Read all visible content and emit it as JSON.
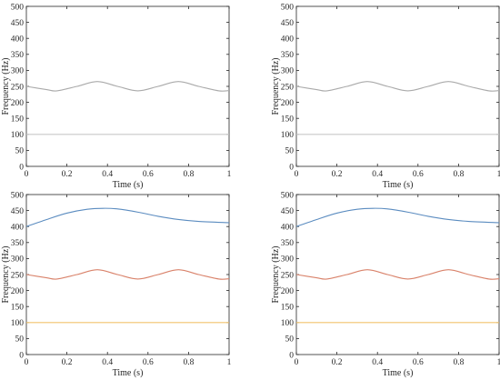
{
  "chart_data": [
    {
      "type": "line",
      "xlabel": "Time (s)",
      "ylabel": "Frequency (Hz)",
      "xlim": [
        0,
        1
      ],
      "ylim": [
        0,
        500
      ],
      "xticks": [
        "0",
        "0.2",
        "0.4",
        "0.6",
        "0.8",
        "1"
      ],
      "yticks": [
        "0",
        "50",
        "100",
        "150",
        "200",
        "250",
        "300",
        "350",
        "400",
        "450",
        "500"
      ],
      "grid": false,
      "series": [
        {
          "color": "#aaaaaa",
          "x": [
            0,
            0.1,
            0.15,
            0.25,
            0.35,
            0.45,
            0.55,
            0.65,
            0.75,
            0.85,
            0.95,
            1.0
          ],
          "y": [
            250,
            240,
            236,
            250,
            265,
            250,
            236,
            250,
            265,
            250,
            236,
            237
          ]
        },
        {
          "color": "#c8c8c8",
          "x": [
            0,
            1
          ],
          "y": [
            100,
            100
          ]
        }
      ]
    },
    {
      "type": "line",
      "xlabel": "Time (s)",
      "ylabel": "Frequency (Hz)",
      "xlim": [
        0,
        1
      ],
      "ylim": [
        0,
        500
      ],
      "xticks": [
        "0",
        "0.2",
        "0.4",
        "0.6",
        "0.8",
        "1"
      ],
      "yticks": [
        "0",
        "50",
        "100",
        "150",
        "200",
        "250",
        "300",
        "350",
        "400",
        "450",
        "500"
      ],
      "grid": false,
      "series": [
        {
          "color": "#aaaaaa",
          "x": [
            0,
            0.1,
            0.15,
            0.25,
            0.35,
            0.45,
            0.55,
            0.65,
            0.75,
            0.85,
            0.95,
            1.0
          ],
          "y": [
            250,
            240,
            236,
            250,
            265,
            250,
            236,
            250,
            265,
            250,
            236,
            237
          ]
        },
        {
          "color": "#c8c8c8",
          "x": [
            0,
            1
          ],
          "y": [
            100,
            100
          ]
        }
      ]
    },
    {
      "type": "line",
      "xlabel": "Time (s)",
      "ylabel": "Frequency (Hz)",
      "xlim": [
        0,
        1
      ],
      "ylim": [
        0,
        500
      ],
      "xticks": [
        "0",
        "0.2",
        "0.4",
        "0.6",
        "0.8",
        "1"
      ],
      "yticks": [
        "0",
        "50",
        "100",
        "150",
        "200",
        "250",
        "300",
        "350",
        "400",
        "450",
        "500"
      ],
      "grid": false,
      "series": [
        {
          "color": "#5b8cc0",
          "x": [
            0,
            0.1,
            0.2,
            0.3,
            0.38,
            0.45,
            0.55,
            0.65,
            0.75,
            0.85,
            1.0
          ],
          "y": [
            400,
            422,
            442,
            454,
            457,
            455,
            445,
            432,
            422,
            416,
            412
          ]
        },
        {
          "color": "#d9826a",
          "x": [
            0,
            0.1,
            0.15,
            0.25,
            0.35,
            0.45,
            0.55,
            0.65,
            0.75,
            0.85,
            0.95,
            1.0
          ],
          "y": [
            250,
            240,
            236,
            250,
            265,
            250,
            236,
            250,
            265,
            250,
            236,
            237
          ]
        },
        {
          "color": "#f2c46e",
          "x": [
            0,
            1
          ],
          "y": [
            100,
            100
          ]
        }
      ]
    },
    {
      "type": "line",
      "xlabel": "Time (s)",
      "ylabel": "Frequency (Hz)",
      "xlim": [
        0,
        1
      ],
      "ylim": [
        0,
        500
      ],
      "xticks": [
        "0",
        "0.2",
        "0.4",
        "0.6",
        "0.8",
        "1"
      ],
      "yticks": [
        "0",
        "50",
        "100",
        "150",
        "200",
        "250",
        "300",
        "350",
        "400",
        "450",
        "500"
      ],
      "grid": false,
      "series": [
        {
          "color": "#5b8cc0",
          "x": [
            0,
            0.1,
            0.2,
            0.3,
            0.38,
            0.45,
            0.55,
            0.65,
            0.75,
            0.85,
            1.0
          ],
          "y": [
            400,
            422,
            442,
            454,
            457,
            455,
            445,
            432,
            422,
            416,
            412
          ]
        },
        {
          "color": "#d9826a",
          "x": [
            0,
            0.1,
            0.15,
            0.25,
            0.35,
            0.45,
            0.55,
            0.65,
            0.75,
            0.85,
            0.95,
            1.0
          ],
          "y": [
            250,
            240,
            236,
            250,
            265,
            250,
            236,
            250,
            265,
            250,
            236,
            237
          ]
        },
        {
          "color": "#f2c46e",
          "x": [
            0,
            1
          ],
          "y": [
            100,
            100
          ]
        }
      ]
    }
  ]
}
